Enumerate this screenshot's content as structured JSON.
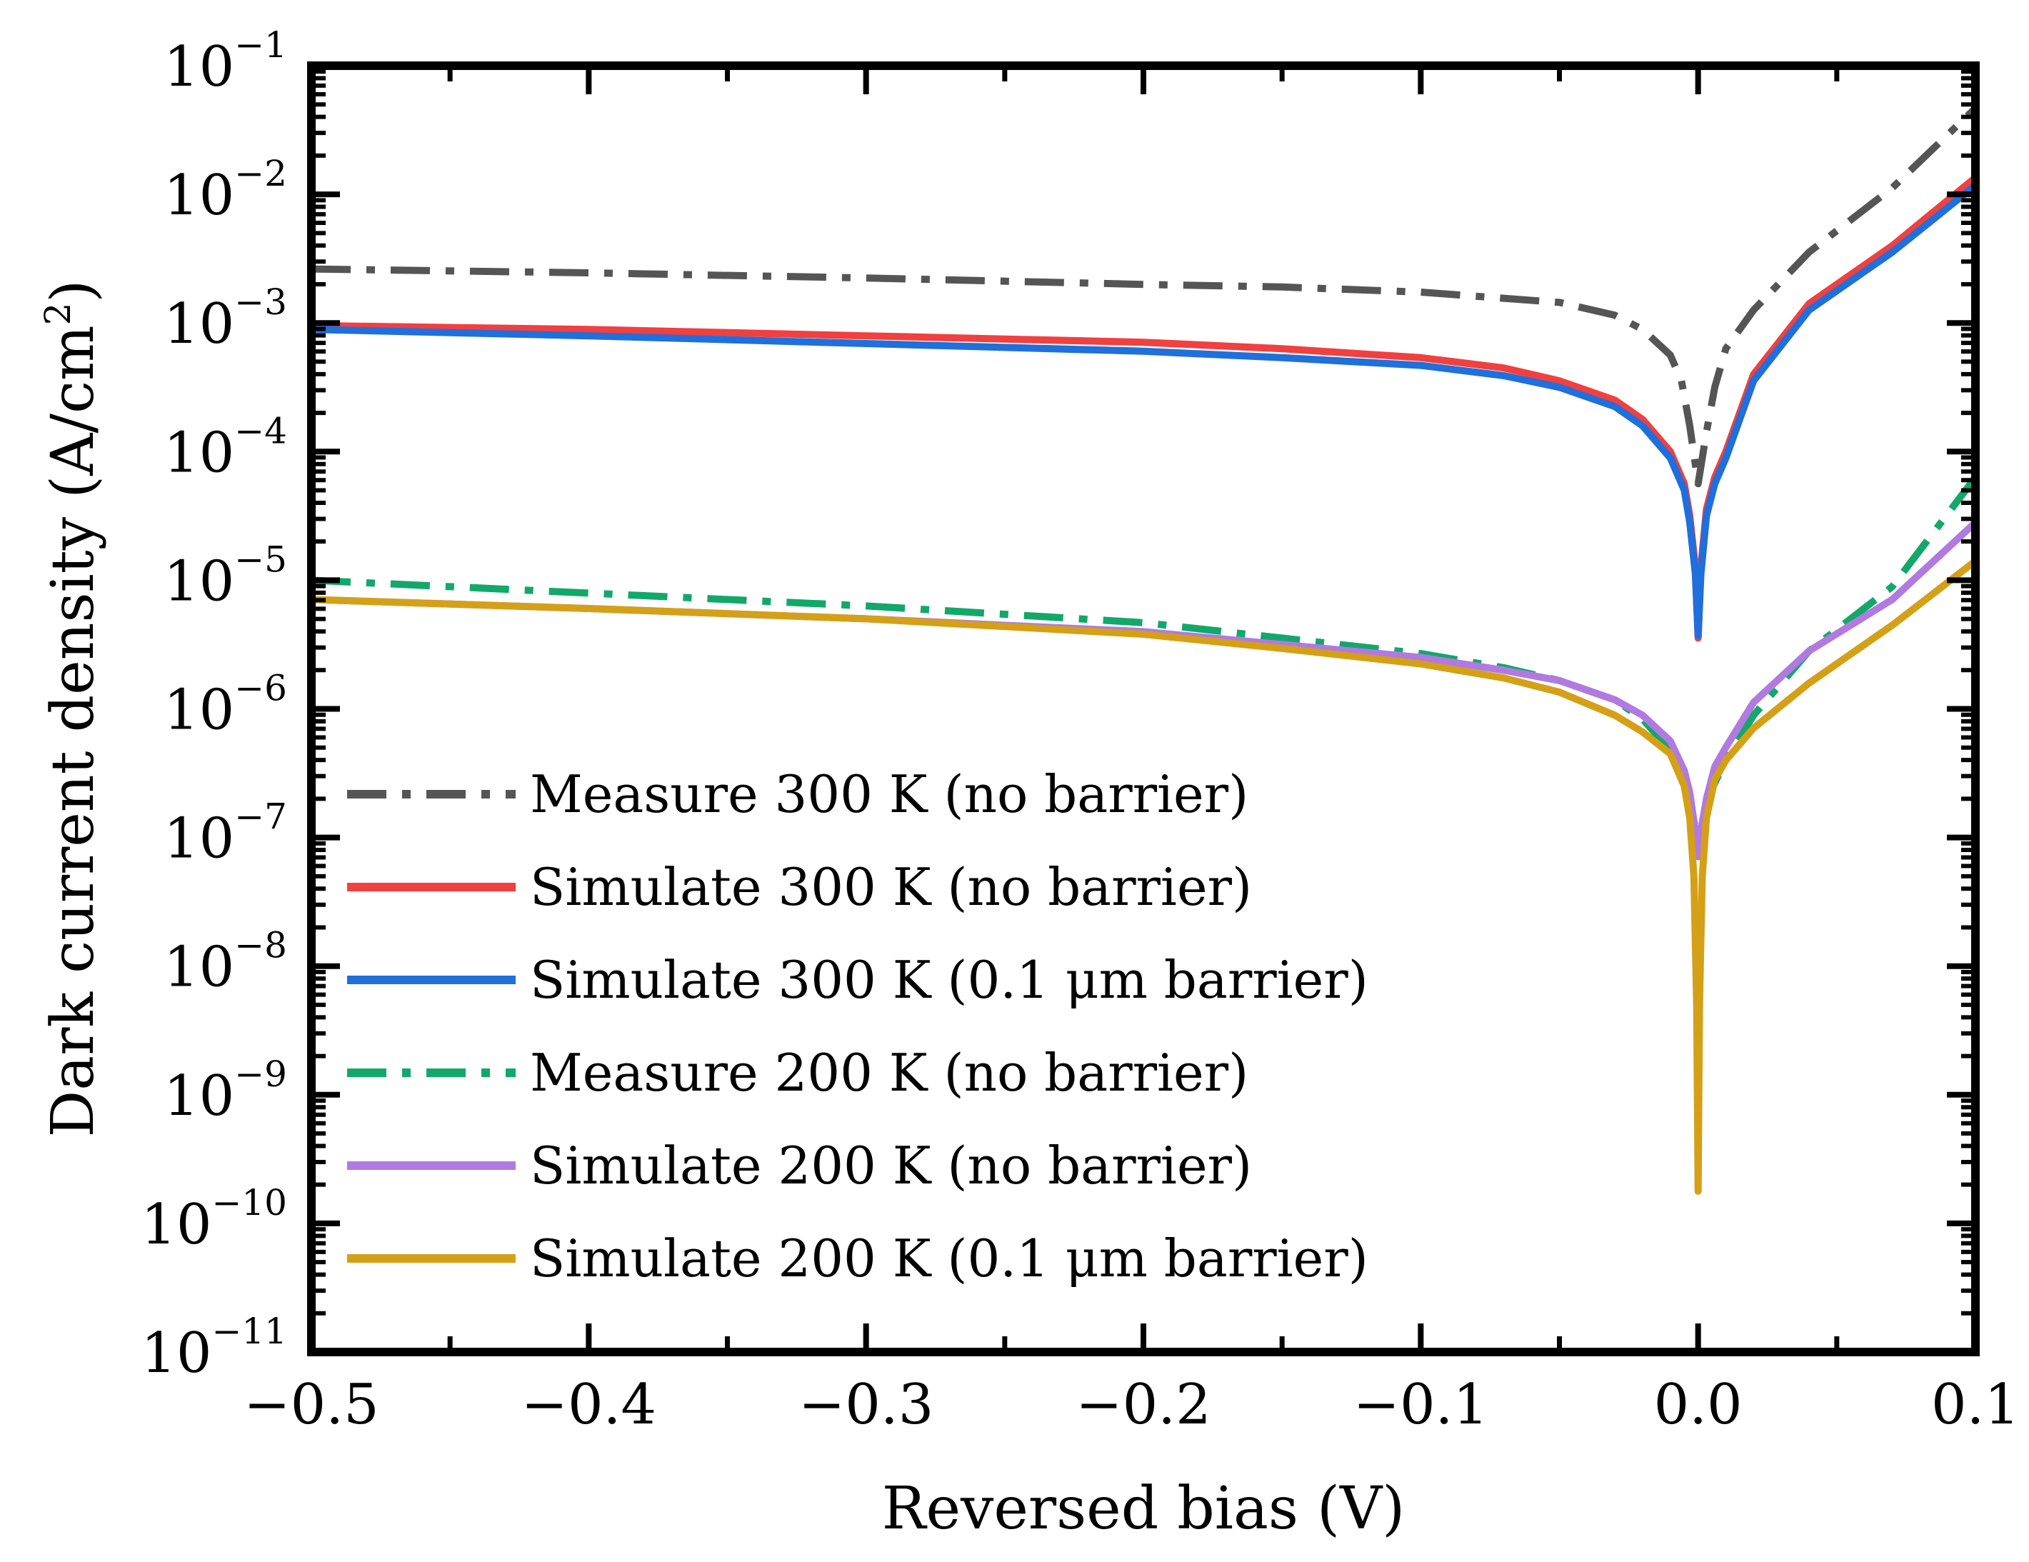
{
  "chart_data": {
    "type": "line",
    "title": "",
    "xlabel": "Reversed bias (V)",
    "ylabel_main": "Dark current density (A/cm",
    "ylabel_sup": "2",
    "ylabel_close": ")",
    "xlim": [
      -0.5,
      0.1
    ],
    "ylim_log10": [
      -11,
      -1
    ],
    "y_scale": "log",
    "grid": false,
    "legend_position": "lower-left",
    "x_ticks": [
      {
        "value": -0.5,
        "label": "−0.5"
      },
      {
        "value": -0.4,
        "label": "−0.4"
      },
      {
        "value": -0.3,
        "label": "−0.3"
      },
      {
        "value": -0.2,
        "label": "−0.2"
      },
      {
        "value": -0.1,
        "label": "−0.1"
      },
      {
        "value": 0.0,
        "label": "0.0"
      },
      {
        "value": 0.1,
        "label": "0.1"
      }
    ],
    "y_ticks": [
      {
        "exp": -1,
        "base": "10",
        "sup": "−1"
      },
      {
        "exp": -2,
        "base": "10",
        "sup": "−2"
      },
      {
        "exp": -3,
        "base": "10",
        "sup": "−3"
      },
      {
        "exp": -4,
        "base": "10",
        "sup": "−4"
      },
      {
        "exp": -5,
        "base": "10",
        "sup": "−5"
      },
      {
        "exp": -6,
        "base": "10",
        "sup": "−6"
      },
      {
        "exp": -7,
        "base": "10",
        "sup": "−7"
      },
      {
        "exp": -8,
        "base": "10",
        "sup": "−8"
      },
      {
        "exp": -9,
        "base": "10",
        "sup": "−9"
      },
      {
        "exp": -10,
        "base": "10",
        "sup": "−10"
      },
      {
        "exp": -11,
        "base": "10",
        "sup": "−11"
      }
    ],
    "series": [
      {
        "name": "Measure 300 K (no barrier)",
        "color": "#555555",
        "style": "dashdot",
        "x": [
          -0.5,
          -0.4,
          -0.3,
          -0.2,
          -0.15,
          -0.1,
          -0.05,
          -0.03,
          -0.02,
          -0.01,
          -0.006,
          -0.003,
          0.0,
          0.003,
          0.006,
          0.01,
          0.02,
          0.04,
          0.07,
          0.1
        ],
        "log10_y": [
          -2.58,
          -2.61,
          -2.65,
          -2.7,
          -2.72,
          -2.76,
          -2.84,
          -2.94,
          -3.05,
          -3.25,
          -3.45,
          -3.8,
          -4.25,
          -3.85,
          -3.5,
          -3.2,
          -2.9,
          -2.45,
          -1.95,
          -1.33
        ]
      },
      {
        "name": "Simulate 300 K (no barrier)",
        "color": "#f04040",
        "style": "solid",
        "x": [
          -0.5,
          -0.4,
          -0.3,
          -0.2,
          -0.15,
          -0.1,
          -0.07,
          -0.05,
          -0.03,
          -0.02,
          -0.01,
          -0.005,
          -0.003,
          -0.001,
          0.0,
          0.001,
          0.003,
          0.006,
          0.01,
          0.02,
          0.04,
          0.07,
          0.1
        ],
        "log10_y": [
          -3.02,
          -3.05,
          -3.1,
          -3.15,
          -3.2,
          -3.27,
          -3.35,
          -3.45,
          -3.6,
          -3.75,
          -4.0,
          -4.25,
          -4.5,
          -4.9,
          -5.45,
          -4.9,
          -4.45,
          -4.2,
          -4.0,
          -3.4,
          -2.85,
          -2.4,
          -1.87
        ]
      },
      {
        "name": "Simulate 300 K (0.1 μm barrier)",
        "color": "#1f6fdc",
        "style": "solid",
        "x": [
          -0.5,
          -0.4,
          -0.3,
          -0.2,
          -0.15,
          -0.1,
          -0.07,
          -0.05,
          -0.03,
          -0.02,
          -0.01,
          -0.005,
          -0.003,
          -0.001,
          0.0,
          0.001,
          0.003,
          0.006,
          0.01,
          0.02,
          0.04,
          0.07,
          0.1
        ],
        "log10_y": [
          -3.05,
          -3.1,
          -3.16,
          -3.22,
          -3.27,
          -3.33,
          -3.41,
          -3.5,
          -3.65,
          -3.8,
          -4.05,
          -4.3,
          -4.55,
          -4.95,
          -5.43,
          -4.95,
          -4.5,
          -4.25,
          -4.05,
          -3.45,
          -2.9,
          -2.45,
          -1.93
        ]
      },
      {
        "name": "Measure 200 K (no barrier)",
        "color": "#12a86a",
        "style": "dashdot",
        "x": [
          -0.5,
          -0.4,
          -0.3,
          -0.2,
          -0.15,
          -0.1,
          -0.07,
          -0.05,
          -0.03,
          -0.02,
          -0.01,
          -0.005,
          0.0,
          0.005,
          0.01,
          0.02,
          0.04,
          0.07,
          0.1
        ],
        "log10_y": [
          -5.0,
          -5.1,
          -5.2,
          -5.33,
          -5.45,
          -5.57,
          -5.68,
          -5.78,
          -5.93,
          -6.08,
          -6.32,
          -6.58,
          -7.0,
          -6.62,
          -6.4,
          -6.05,
          -5.55,
          -5.05,
          -4.2
        ]
      },
      {
        "name": "Simulate 200 K (no barrier)",
        "color": "#b07ae0",
        "style": "solid",
        "x": [
          -0.5,
          -0.4,
          -0.3,
          -0.2,
          -0.15,
          -0.1,
          -0.07,
          -0.05,
          -0.03,
          -0.02,
          -0.01,
          -0.005,
          -0.003,
          -0.001,
          0.0,
          0.001,
          0.003,
          0.006,
          0.01,
          0.02,
          0.04,
          0.07,
          0.1
        ],
        "log10_y": [
          -5.15,
          -5.22,
          -5.3,
          -5.4,
          -5.5,
          -5.6,
          -5.7,
          -5.78,
          -5.93,
          -6.05,
          -6.25,
          -6.48,
          -6.65,
          -6.95,
          -7.15,
          -6.95,
          -6.7,
          -6.45,
          -6.3,
          -5.95,
          -5.55,
          -5.15,
          -4.55
        ]
      },
      {
        "name": "Simulate 200 K (0.1 μm barrier)",
        "color": "#d4a017",
        "style": "solid",
        "x": [
          -0.5,
          -0.4,
          -0.3,
          -0.2,
          -0.15,
          -0.1,
          -0.07,
          -0.05,
          -0.03,
          -0.02,
          -0.01,
          -0.005,
          -0.003,
          -0.0015,
          -0.0005,
          0.0,
          0.0005,
          0.0015,
          0.003,
          0.006,
          0.01,
          0.02,
          0.04,
          0.07,
          0.1
        ],
        "log10_y": [
          -5.15,
          -5.22,
          -5.3,
          -5.42,
          -5.53,
          -5.65,
          -5.76,
          -5.87,
          -6.05,
          -6.18,
          -6.35,
          -6.6,
          -6.85,
          -7.3,
          -8.3,
          -9.75,
          -8.3,
          -7.3,
          -6.85,
          -6.55,
          -6.4,
          -6.15,
          -5.8,
          -5.35,
          -4.85
        ]
      }
    ]
  }
}
